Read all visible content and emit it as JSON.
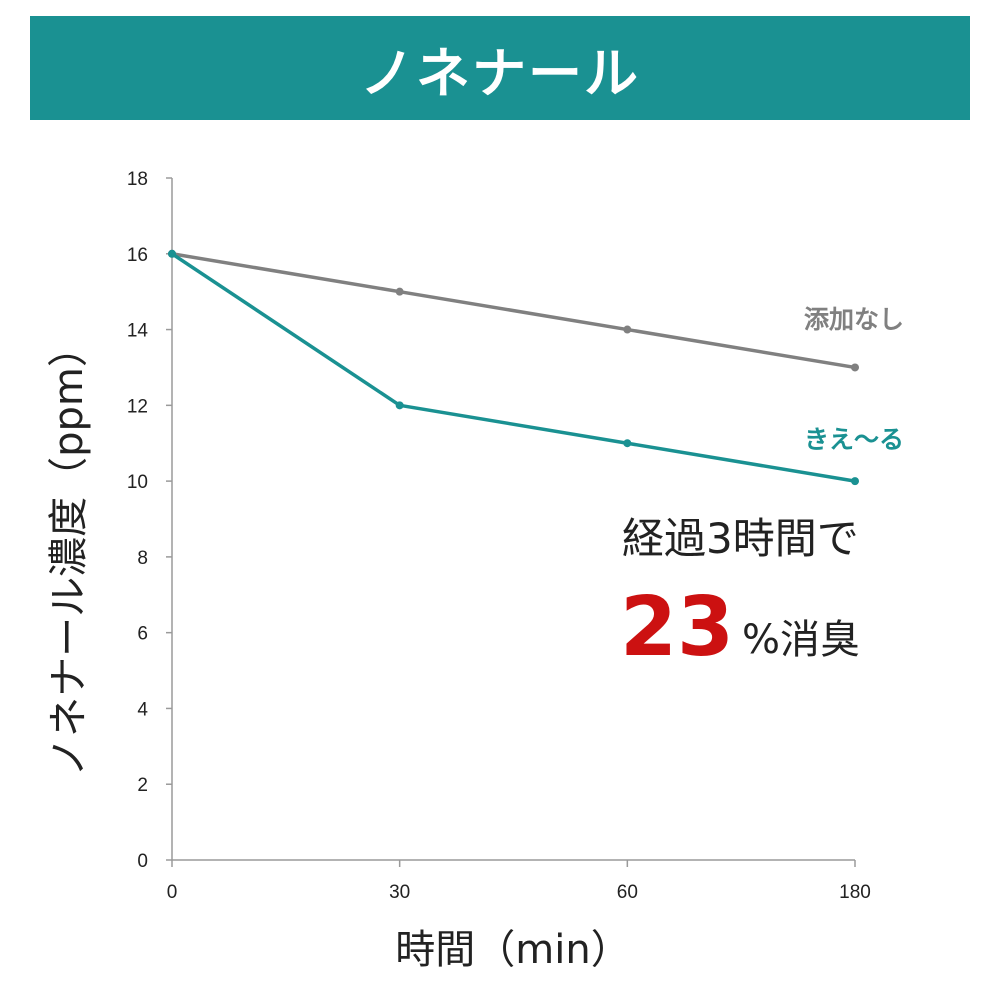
{
  "header": {
    "title": "ノネナール"
  },
  "colors": {
    "banner": "#1a9192",
    "series_control": "#808080",
    "series_treated": "#1a9192",
    "highlight": "#cc1111"
  },
  "annotation": {
    "line1": "経過3時間で",
    "value": "23",
    "suffix": "%消臭"
  },
  "chart_data": {
    "type": "line",
    "xlabel": "時間（min）",
    "ylabel": "ノネナール濃度（ppm）",
    "categories": [
      "0",
      "30",
      "60",
      "180"
    ],
    "ylim": [
      0,
      18
    ],
    "yticks": [
      "0",
      "2",
      "4",
      "6",
      "8",
      "10",
      "12",
      "14",
      "16",
      "18"
    ],
    "grid": false,
    "series": [
      {
        "name": "添加なし",
        "values": [
          16,
          15,
          14,
          13
        ],
        "color": "#808080"
      },
      {
        "name": "きえ〜る",
        "values": [
          16,
          12,
          11,
          10
        ],
        "color": "#1a9192"
      }
    ]
  }
}
